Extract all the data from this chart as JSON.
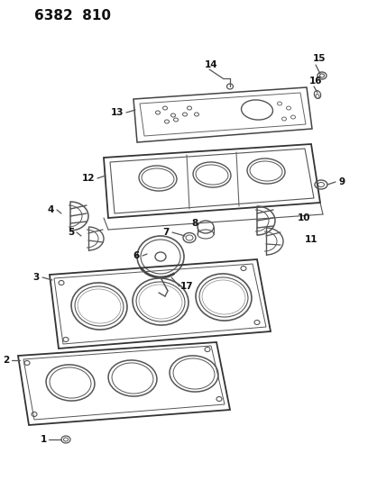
{
  "title": "6382  810",
  "bg_color": "#ffffff",
  "line_color": "#555555",
  "label_color": "#111111",
  "fig_width": 4.08,
  "fig_height": 5.33,
  "dpi": 100
}
